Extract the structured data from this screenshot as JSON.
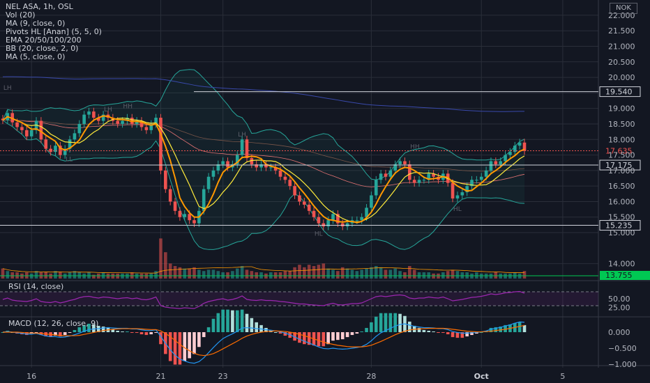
{
  "header": {
    "symbol_line": "NEL ASA, 1h, OSL",
    "indicators": [
      "Vol (20)",
      "MA (9, close, 0)",
      "Pivots HL [Anan] (5, 5, 0)",
      "EMA 20/50/100/200",
      "BB (20, close, 2, 0)",
      "MA (5, close, 0)"
    ],
    "currency": "NOK"
  },
  "colors": {
    "background": "#131722",
    "grid": "#2a2e39",
    "up": "#26a69a",
    "down": "#ef5350",
    "ma9": "#ffeb3b",
    "ma5": "#ff9800",
    "rsi": "#9c27b0",
    "last_price_box": "#ef5350",
    "level_box": "#e0e3eb",
    "green_box": "#00c853"
  },
  "chart_data": [
    {
      "type": "candlestick",
      "title": "NEL ASA, 1h, OSL",
      "ylim": [
        13.7,
        22.2
      ],
      "y_ticks": [
        22.0,
        21.5,
        21.0,
        20.5,
        20.0,
        19.5,
        19.0,
        18.5,
        18.0,
        17.5,
        17.0,
        16.5,
        16.0,
        15.5,
        15.0,
        14.0
      ],
      "y_tick_labels": [
        "22.000",
        "21.500",
        "21.000",
        "20.500",
        "20.000",
        "",
        "19.000",
        "18.500",
        "18.000",
        "17.500",
        "17.000",
        "16.500",
        "16.000",
        "15.500",
        "15.000",
        "14.000"
      ],
      "x_tick_labels": [
        "16",
        "21",
        "23",
        "28",
        "Oct",
        "5"
      ],
      "closes": [
        18.62,
        18.85,
        18.55,
        18.4,
        18.3,
        18.1,
        18.3,
        18.6,
        18.0,
        17.7,
        17.6,
        17.8,
        17.5,
        17.7,
        18.0,
        18.2,
        18.5,
        18.8,
        18.9,
        18.7,
        18.6,
        18.8,
        18.7,
        18.6,
        18.5,
        18.6,
        18.7,
        18.5,
        18.6,
        18.4,
        18.3,
        18.5,
        18.7,
        17.0,
        16.4,
        16.0,
        15.7,
        15.5,
        15.6,
        15.4,
        15.3,
        15.7,
        16.4,
        16.8,
        17.0,
        17.2,
        17.3,
        17.1,
        17.2,
        17.5,
        18.0,
        17.4,
        17.2,
        17.1,
        17.2,
        17.1,
        17.1,
        17.0,
        16.8,
        16.7,
        16.5,
        16.2,
        16.0,
        15.9,
        15.7,
        15.5,
        15.3,
        15.2,
        15.4,
        15.6,
        15.3,
        15.2,
        15.3,
        15.4,
        15.4,
        15.5,
        15.8,
        16.2,
        16.7,
        16.9,
        16.8,
        17.0,
        17.2,
        17.3,
        17.2,
        16.7,
        16.6,
        16.7,
        16.7,
        16.9,
        16.8,
        16.7,
        16.9,
        16.6,
        16.1,
        16.2,
        16.3,
        16.5,
        16.7,
        16.7,
        16.8,
        17.0,
        17.3,
        17.2,
        17.3,
        17.5,
        17.6,
        17.8,
        17.9,
        17.63
      ],
      "last_price": "17.635",
      "levels": [
        {
          "value": "19.540",
          "style": "solid"
        },
        {
          "value": "17.175",
          "style": "solid"
        },
        {
          "value": "15.235",
          "style": "solid"
        }
      ],
      "pivot_labels": [
        {
          "text": "LH",
          "value": 19.6
        },
        {
          "text": "LL",
          "value": 17.3
        },
        {
          "text": "LH",
          "value": 18.9
        },
        {
          "text": "HH",
          "value": 19.0
        },
        {
          "text": "LH",
          "value": 18.1
        },
        {
          "text": "HL",
          "value": 14.9
        },
        {
          "text": "HH",
          "value": 17.7
        },
        {
          "text": "HL",
          "value": 15.7
        }
      ]
    },
    {
      "type": "bar",
      "title": "Vol (20)",
      "last_value_label": "13.755",
      "values": [
        0.8,
        0.6,
        0.5,
        0.5,
        0.4,
        0.5,
        0.4,
        0.6,
        0.5,
        0.5,
        0.4,
        0.6,
        0.5,
        0.4,
        0.5,
        0.6,
        0.5,
        0.4,
        0.5,
        0.3,
        0.4,
        0.5,
        0.4,
        0.4,
        0.4,
        0.4,
        0.4,
        0.5,
        0.4,
        0.4,
        0.4,
        0.4,
        0.6,
        3.2,
        2.1,
        1.2,
        1.0,
        0.9,
        0.8,
        0.8,
        0.9,
        0.7,
        0.6,
        0.7,
        0.7,
        0.6,
        0.5,
        0.5,
        0.6,
        0.8,
        1.0,
        0.7,
        0.6,
        0.5,
        0.5,
        0.4,
        0.5,
        0.5,
        0.5,
        0.6,
        0.6,
        0.9,
        1.1,
        0.9,
        1.1,
        1.0,
        1.1,
        1.2,
        0.8,
        0.7,
        0.6,
        0.9,
        0.8,
        0.7,
        0.6,
        0.7,
        0.8,
        0.9,
        1.0,
        0.9,
        0.7,
        0.7,
        0.8,
        0.6,
        0.5,
        1.0,
        0.7,
        0.5,
        0.5,
        0.5,
        0.4,
        0.4,
        0.5,
        0.6,
        0.7,
        0.6,
        0.5,
        0.5,
        0.4,
        0.5,
        0.4,
        0.4,
        0.4,
        0.5,
        0.4,
        0.4,
        0.4,
        0.5,
        0.4,
        0.6
      ]
    },
    {
      "type": "line",
      "title": "RSI (14, close)",
      "y_ticks": [
        75.0,
        50.0,
        25.0
      ],
      "y_tick_labels": [
        "",
        "50.00",
        "25.00"
      ],
      "series": [
        {
          "values": [
            48,
            52,
            46,
            44,
            43,
            42,
            45,
            50,
            42,
            40,
            39,
            42,
            38,
            41,
            45,
            48,
            53,
            56,
            57,
            54,
            52,
            55,
            54,
            52,
            50,
            52,
            53,
            50,
            52,
            48,
            47,
            50,
            55,
            30,
            26,
            24,
            23,
            22,
            24,
            23,
            22,
            28,
            37,
            42,
            45,
            48,
            50,
            46,
            48,
            52,
            58,
            48,
            46,
            45,
            47,
            45,
            45,
            44,
            42,
            41,
            39,
            37,
            35,
            35,
            33,
            32,
            31,
            30,
            34,
            37,
            33,
            32,
            34,
            36,
            36,
            38,
            44,
            50,
            56,
            58,
            56,
            58,
            60,
            61,
            59,
            52,
            50,
            52,
            52,
            55,
            53,
            52,
            55,
            50,
            44,
            46,
            48,
            51,
            54,
            55,
            57,
            60,
            64,
            62,
            64,
            67,
            68,
            70,
            71,
            66
          ]
        }
      ]
    },
    {
      "type": "line",
      "title": "MACD (12, 26, close, 9)",
      "y_ticks": [
        0.0,
        -0.5,
        -1.0
      ],
      "y_tick_labels": [
        "0.000",
        "−0.500",
        "−1.000"
      ],
      "macd": [
        0.0,
        0.02,
        0.0,
        -0.02,
        -0.04,
        -0.06,
        -0.06,
        -0.04,
        -0.08,
        -0.12,
        -0.14,
        -0.14,
        -0.16,
        -0.15,
        -0.12,
        -0.08,
        -0.03,
        0.03,
        0.08,
        0.1,
        0.11,
        0.13,
        0.14,
        0.13,
        0.12,
        0.12,
        0.12,
        0.1,
        0.1,
        0.07,
        0.05,
        0.05,
        0.07,
        -0.13,
        -0.35,
        -0.55,
        -0.72,
        -0.84,
        -0.9,
        -0.95,
        -0.97,
        -0.92,
        -0.8,
        -0.64,
        -0.48,
        -0.33,
        -0.2,
        -0.12,
        -0.05,
        0.03,
        0.13,
        0.14,
        0.13,
        0.11,
        0.1,
        0.08,
        0.06,
        0.04,
        0.01,
        -0.03,
        -0.08,
        -0.15,
        -0.22,
        -0.28,
        -0.34,
        -0.4,
        -0.46,
        -0.51,
        -0.52,
        -0.5,
        -0.52,
        -0.53,
        -0.52,
        -0.5,
        -0.48,
        -0.45,
        -0.38,
        -0.27,
        -0.13,
        -0.02,
        0.05,
        0.12,
        0.19,
        0.24,
        0.26,
        0.22,
        0.18,
        0.16,
        0.14,
        0.14,
        0.13,
        0.11,
        0.11,
        0.08,
        0.02,
        -0.01,
        -0.03,
        -0.03,
        -0.02,
        -0.01,
        0.01,
        0.04,
        0.09,
        0.12,
        0.15,
        0.19,
        0.23,
        0.28,
        0.32,
        0.31
      ],
      "signal": [
        0.0,
        0.0,
        0.0,
        0.0,
        -0.01,
        -0.02,
        -0.03,
        -0.03,
        -0.04,
        -0.06,
        -0.07,
        -0.09,
        -0.1,
        -0.11,
        -0.11,
        -0.11,
        -0.1,
        -0.07,
        -0.04,
        -0.01,
        0.02,
        0.05,
        0.07,
        0.09,
        0.1,
        0.11,
        0.11,
        0.11,
        0.11,
        0.1,
        0.09,
        0.08,
        0.08,
        0.04,
        -0.04,
        -0.14,
        -0.26,
        -0.38,
        -0.49,
        -0.58,
        -0.66,
        -0.71,
        -0.73,
        -0.71,
        -0.67,
        -0.6,
        -0.52,
        -0.44,
        -0.36,
        -0.28,
        -0.19,
        -0.12,
        -0.07,
        -0.03,
        0.0,
        0.02,
        0.03,
        0.04,
        0.03,
        0.02,
        0.0,
        -0.03,
        -0.07,
        -0.11,
        -0.16,
        -0.21,
        -0.26,
        -0.31,
        -0.35,
        -0.38,
        -0.41,
        -0.43,
        -0.45,
        -0.46,
        -0.46,
        -0.46,
        -0.44,
        -0.41,
        -0.35,
        -0.29,
        -0.22,
        -0.15,
        -0.08,
        -0.02,
        0.03,
        0.07,
        0.09,
        0.1,
        0.11,
        0.12,
        0.12,
        0.12,
        0.12,
        0.11,
        0.09,
        0.07,
        0.05,
        0.03,
        0.02,
        0.01,
        0.01,
        0.02,
        0.03,
        0.05,
        0.07,
        0.09,
        0.12,
        0.15,
        0.18,
        0.21
      ]
    }
  ]
}
